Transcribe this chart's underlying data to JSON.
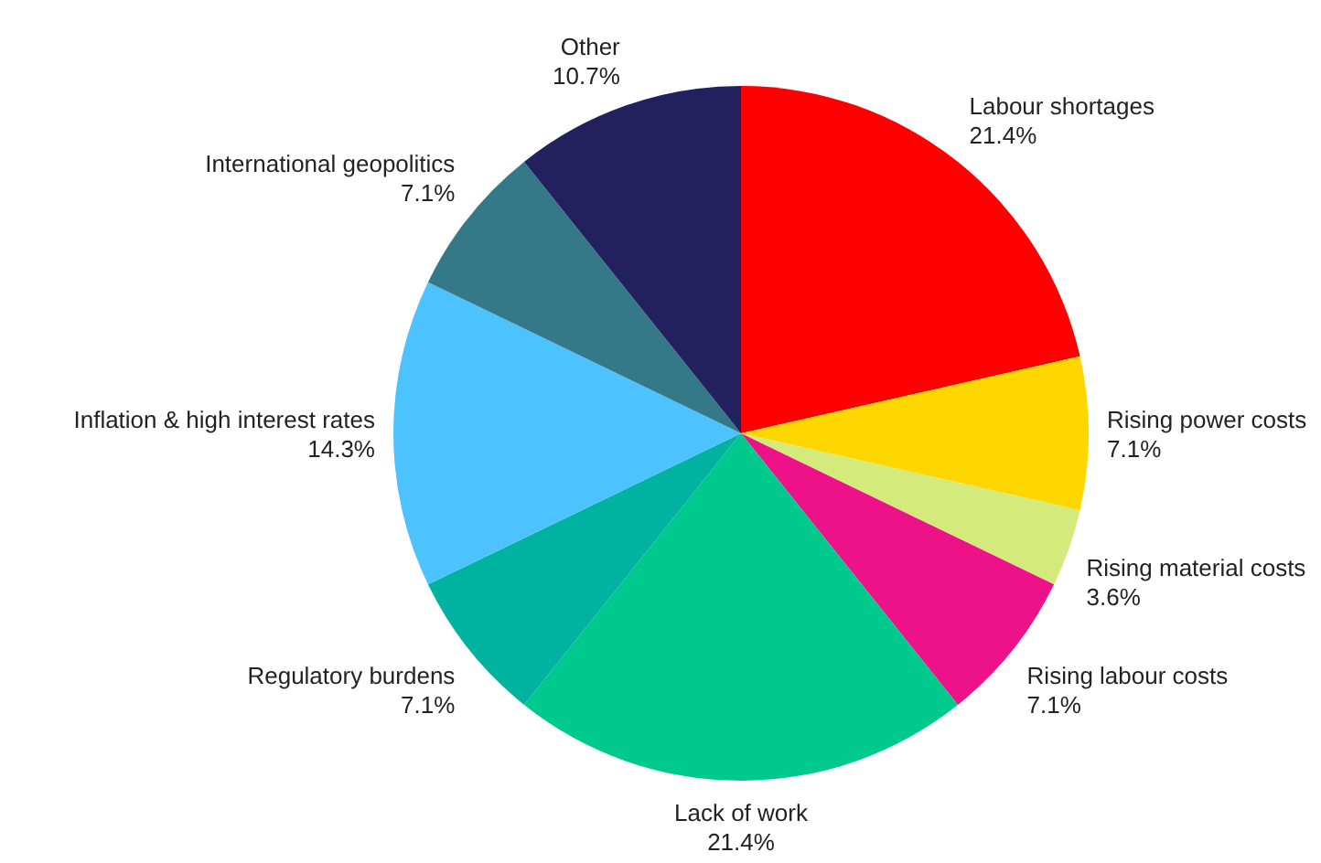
{
  "chart_data": {
    "type": "pie",
    "categories": [
      "Labour shortages",
      "Rising power costs",
      "Rising material costs",
      "Rising labour costs",
      "Lack of work",
      "Regulatory burdens",
      "Inflation & high interest rates",
      "International geopolitics",
      "Other"
    ],
    "values": [
      21.4,
      7.1,
      3.6,
      7.1,
      21.4,
      7.1,
      14.3,
      7.1,
      10.7
    ],
    "colors": [
      "#ff0000",
      "#ffd700",
      "#d4ea7a",
      "#ee1289",
      "#00c98e",
      "#00b2a0",
      "#4cc3ff",
      "#357888",
      "#22215e"
    ],
    "value_labels": [
      "21.4%",
      "7.1%",
      "3.6%",
      "7.1%",
      "21.4%",
      "7.1%",
      "14.3%",
      "7.1%",
      "10.7%"
    ],
    "legend": false
  }
}
